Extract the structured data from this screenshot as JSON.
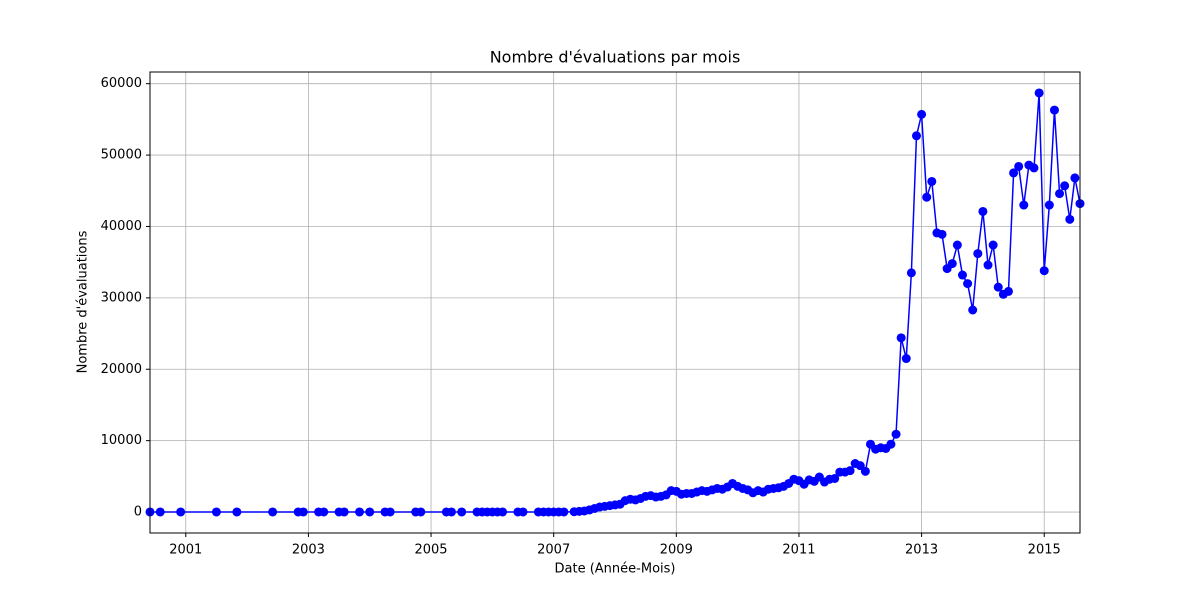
{
  "chart_data": {
    "type": "line",
    "title": "Nombre d'évaluations par mois",
    "xlabel": "Date (Année-Mois)",
    "ylabel": "Nombre d'évaluations",
    "x": [
      "2000-06",
      "2000-08",
      "2000-12",
      "2001-07",
      "2001-11",
      "2002-06",
      "2002-11",
      "2002-12",
      "2003-03",
      "2003-04",
      "2003-07",
      "2003-08",
      "2003-11",
      "2004-01",
      "2004-04",
      "2004-05",
      "2004-10",
      "2004-11",
      "2005-04",
      "2005-05",
      "2005-07",
      "2005-10",
      "2005-11",
      "2005-12",
      "2006-01",
      "2006-02",
      "2006-03",
      "2006-06",
      "2006-07",
      "2006-10",
      "2006-11",
      "2006-12",
      "2007-01",
      "2007-02",
      "2007-03",
      "2007-05",
      "2007-06",
      "2007-07",
      "2007-08",
      "2007-09",
      "2007-10",
      "2007-11",
      "2007-12",
      "2008-01",
      "2008-02",
      "2008-03",
      "2008-04",
      "2008-05",
      "2008-06",
      "2008-07",
      "2008-08",
      "2008-09",
      "2008-10",
      "2008-11",
      "2008-12",
      "2009-01",
      "2009-02",
      "2009-03",
      "2009-04",
      "2009-05",
      "2009-06",
      "2009-07",
      "2009-08",
      "2009-09",
      "2009-10",
      "2009-11",
      "2009-12",
      "2010-01",
      "2010-02",
      "2010-03",
      "2010-04",
      "2010-05",
      "2010-06",
      "2010-07",
      "2010-08",
      "2010-09",
      "2010-10",
      "2010-11",
      "2010-12",
      "2011-01",
      "2011-02",
      "2011-03",
      "2011-04",
      "2011-05",
      "2011-06",
      "2011-07",
      "2011-08",
      "2011-09",
      "2011-10",
      "2011-11",
      "2011-12",
      "2012-01",
      "2012-02",
      "2012-03",
      "2012-04",
      "2012-05",
      "2012-06",
      "2012-07",
      "2012-08",
      "2012-09",
      "2012-10",
      "2012-11",
      "2012-12",
      "2013-01",
      "2013-02",
      "2013-03",
      "2013-04",
      "2013-05",
      "2013-06",
      "2013-07",
      "2013-08",
      "2013-09",
      "2013-10",
      "2013-11",
      "2013-12",
      "2014-01",
      "2014-02",
      "2014-03",
      "2014-04",
      "2014-05",
      "2014-06",
      "2014-07",
      "2014-08",
      "2014-09",
      "2014-10",
      "2014-11",
      "2014-12",
      "2015-01",
      "2015-02",
      "2015-03",
      "2015-04",
      "2015-05",
      "2015-06",
      "2015-07",
      "2015-08"
    ],
    "series": [
      {
        "name": "Nombre d'évaluations",
        "color": "#0000ff",
        "values": [
          10,
          10,
          10,
          10,
          10,
          10,
          10,
          10,
          10,
          10,
          10,
          10,
          10,
          10,
          10,
          10,
          10,
          10,
          10,
          10,
          10,
          10,
          10,
          10,
          10,
          10,
          10,
          10,
          10,
          10,
          10,
          10,
          10,
          10,
          10,
          50,
          100,
          150,
          300,
          500,
          700,
          800,
          900,
          1000,
          1100,
          1600,
          1800,
          1700,
          1900,
          2200,
          2300,
          2100,
          2200,
          2400,
          3000,
          2900,
          2500,
          2600,
          2600,
          2800,
          3000,
          2900,
          3100,
          3300,
          3200,
          3500,
          4000,
          3600,
          3300,
          3100,
          2700,
          3000,
          2800,
          3200,
          3300,
          3400,
          3600,
          4000,
          4600,
          4400,
          3900,
          4500,
          4300,
          4900,
          4200,
          4600,
          4700,
          5600,
          5600,
          5800,
          6800,
          6500,
          5700,
          9500,
          8800,
          9000,
          8900,
          9500,
          10900,
          24400,
          21500,
          33500,
          52700,
          55700,
          44100,
          46300,
          39100,
          38900,
          34100,
          34800,
          37400,
          33200,
          32000,
          28300,
          36200,
          42100,
          34600,
          37400,
          31500,
          30500,
          30900,
          47500,
          48400,
          43000,
          48600,
          48200,
          58700,
          33800,
          43000,
          56300,
          44600,
          45700,
          41000,
          46800,
          43200
        ]
      }
    ],
    "xlim": [
      "2000-06",
      "2015-08"
    ],
    "xticks": [
      {
        "value": "2001-01",
        "label": "2001"
      },
      {
        "value": "2003-01",
        "label": "2003"
      },
      {
        "value": "2005-01",
        "label": "2005"
      },
      {
        "value": "2007-01",
        "label": "2007"
      },
      {
        "value": "2009-01",
        "label": "2009"
      },
      {
        "value": "2011-01",
        "label": "2011"
      },
      {
        "value": "2013-01",
        "label": "2013"
      },
      {
        "value": "2015-01",
        "label": "2015"
      }
    ],
    "ylim": [
      -2935,
      61635
    ],
    "yticks": [
      0,
      10000,
      20000,
      30000,
      40000,
      50000,
      60000
    ],
    "grid": true
  }
}
